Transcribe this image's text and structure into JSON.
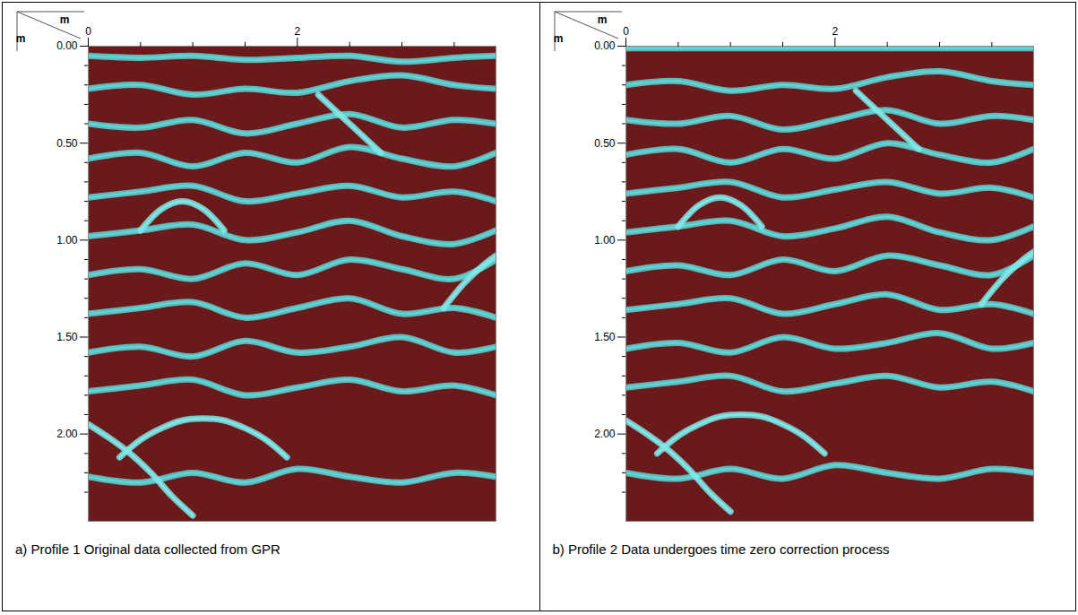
{
  "chart_data": [
    {
      "type": "line",
      "caption": "a)  Profile 1 Original data collected from GPR",
      "x_label": "m",
      "y_label": "m",
      "xlim": [
        0,
        3.9
      ],
      "xticks": [
        0,
        2
      ],
      "xminor": [
        0.5,
        1,
        1.5,
        2.5,
        3,
        3.5
      ],
      "ylim": [
        0,
        2.45
      ],
      "yticks": [
        {
          "value": 0,
          "label": "0.00"
        },
        {
          "value": 0.5,
          "label": "0.50"
        },
        {
          "value": 1,
          "label": "1.00"
        },
        {
          "value": 1.5,
          "label": "1.50"
        },
        {
          "value": 2,
          "label": "2.00"
        }
      ],
      "yminor": [
        0.1,
        0.2,
        0.3,
        0.4,
        0.6,
        0.7,
        0.8,
        0.9,
        1.1,
        1.2,
        1.3,
        1.4,
        1.6,
        1.7,
        1.8,
        1.9,
        2.1,
        2.2,
        2.3
      ],
      "series": [
        {
          "color": "#5ed6d6",
          "x": [
            0,
            0.5,
            1,
            1.5,
            2,
            2.5,
            3,
            3.5,
            3.9
          ],
          "values": [
            0.05,
            0.06,
            0.05,
            0.07,
            0.06,
            0.05,
            0.08,
            0.06,
            0.05
          ]
        },
        {
          "color": "#5ed6d6",
          "x": [
            0,
            0.5,
            1,
            1.5,
            2,
            2.5,
            3,
            3.5,
            3.9
          ],
          "values": [
            0.22,
            0.2,
            0.25,
            0.22,
            0.24,
            0.18,
            0.15,
            0.2,
            0.22
          ]
        },
        {
          "color": "#5ed6d6",
          "x": [
            0,
            0.5,
            1,
            1.5,
            2,
            2.5,
            3,
            3.5,
            3.9
          ],
          "values": [
            0.4,
            0.42,
            0.38,
            0.45,
            0.4,
            0.35,
            0.42,
            0.38,
            0.4
          ]
        },
        {
          "color": "#5ed6d6",
          "x": [
            0,
            0.5,
            1,
            1.5,
            2,
            2.5,
            3,
            3.5,
            3.9
          ],
          "values": [
            0.58,
            0.55,
            0.62,
            0.55,
            0.6,
            0.52,
            0.58,
            0.62,
            0.55
          ]
        },
        {
          "color": "#5ed6d6",
          "x": [
            0,
            0.5,
            1,
            1.5,
            2,
            2.5,
            3,
            3.5,
            3.9
          ],
          "values": [
            0.78,
            0.75,
            0.72,
            0.8,
            0.76,
            0.72,
            0.78,
            0.75,
            0.8
          ]
        },
        {
          "color": "#5ed6d6",
          "x": [
            0,
            0.5,
            1,
            1.5,
            2,
            2.5,
            3,
            3.5,
            3.9
          ],
          "values": [
            0.98,
            0.95,
            0.92,
            1.0,
            0.96,
            0.9,
            0.98,
            1.02,
            0.95
          ]
        },
        {
          "color": "#5ed6d6",
          "x": [
            0,
            0.5,
            1,
            1.5,
            2,
            2.5,
            3,
            3.5,
            3.9
          ],
          "values": [
            1.18,
            1.15,
            1.2,
            1.12,
            1.18,
            1.1,
            1.15,
            1.2,
            1.1
          ]
        },
        {
          "color": "#5ed6d6",
          "x": [
            0,
            0.5,
            1,
            1.5,
            2,
            2.5,
            3,
            3.5,
            3.9
          ],
          "values": [
            1.38,
            1.35,
            1.32,
            1.4,
            1.35,
            1.3,
            1.38,
            1.35,
            1.4
          ]
        },
        {
          "color": "#5ed6d6",
          "x": [
            0,
            0.5,
            1,
            1.5,
            2,
            2.5,
            3,
            3.5,
            3.9
          ],
          "values": [
            1.58,
            1.55,
            1.6,
            1.52,
            1.58,
            1.55,
            1.5,
            1.58,
            1.55
          ]
        },
        {
          "color": "#5ed6d6",
          "x": [
            0,
            0.5,
            1,
            1.5,
            2,
            2.5,
            3,
            3.5,
            3.9
          ],
          "values": [
            1.78,
            1.75,
            1.72,
            1.8,
            1.76,
            1.72,
            1.78,
            1.75,
            1.8
          ]
        },
        {
          "color": "#5ed6d6",
          "x": [
            0,
            0.5,
            1,
            1.5,
            2,
            2.5,
            3,
            3.5,
            3.9
          ],
          "values": [
            2.22,
            2.25,
            2.2,
            2.25,
            2.18,
            2.22,
            2.25,
            2.2,
            2.22
          ]
        },
        {
          "color": "#7fe8e8",
          "x": [
            0.3,
            0.5,
            0.7,
            0.9,
            1.1,
            1.3,
            1.5,
            1.7,
            1.9
          ],
          "values": [
            2.12,
            2.03,
            1.97,
            1.93,
            1.92,
            1.93,
            1.97,
            2.03,
            2.12
          ]
        },
        {
          "color": "#7fe8e8",
          "x": [
            0,
            0.2,
            0.4,
            0.6,
            0.8,
            1.0
          ],
          "values": [
            1.95,
            2.02,
            2.1,
            2.2,
            2.32,
            2.42
          ]
        },
        {
          "color": "#7fe8e8",
          "x": [
            0.5,
            0.7,
            0.9,
            1.1,
            1.3
          ],
          "values": [
            0.95,
            0.84,
            0.8,
            0.84,
            0.95
          ]
        },
        {
          "color": "#7fe8e8",
          "x": [
            3.4,
            3.6,
            3.8,
            3.9
          ],
          "values": [
            1.35,
            1.22,
            1.12,
            1.08
          ]
        },
        {
          "color": "#7fe8e8",
          "x": [
            2.2,
            2.5,
            2.8
          ],
          "values": [
            0.25,
            0.4,
            0.55
          ]
        }
      ]
    },
    {
      "type": "line",
      "caption": "b)  Profile 2 Data undergoes time zero correction process",
      "x_label": "m",
      "y_label": "m",
      "xlim": [
        0,
        3.9
      ],
      "xticks": [
        0,
        2
      ],
      "xminor": [
        0.5,
        1,
        1.5,
        2.5,
        3,
        3.5
      ],
      "ylim": [
        0,
        2.45
      ],
      "yticks": [
        {
          "value": 0,
          "label": "0.00"
        },
        {
          "value": 0.5,
          "label": "0.50"
        },
        {
          "value": 1,
          "label": "1.00"
        },
        {
          "value": 1.5,
          "label": "1.50"
        },
        {
          "value": 2,
          "label": "2.00"
        }
      ],
      "yminor": [
        0.1,
        0.2,
        0.3,
        0.4,
        0.6,
        0.7,
        0.8,
        0.9,
        1.1,
        1.2,
        1.3,
        1.4,
        1.6,
        1.7,
        1.8,
        1.9,
        2.1,
        2.2,
        2.3
      ],
      "series": [
        {
          "color": "#5ed6d6",
          "x": [
            0,
            0.5,
            1,
            1.5,
            2,
            2.5,
            3,
            3.5,
            3.9
          ],
          "values": [
            0.01,
            0.01,
            0.01,
            0.01,
            0.01,
            0.01,
            0.01,
            0.01,
            0.01
          ]
        },
        {
          "color": "#5ed6d6",
          "x": [
            0,
            0.5,
            1,
            1.5,
            2,
            2.5,
            3,
            3.5,
            3.9
          ],
          "values": [
            0.2,
            0.18,
            0.23,
            0.2,
            0.22,
            0.16,
            0.13,
            0.18,
            0.2
          ]
        },
        {
          "color": "#5ed6d6",
          "x": [
            0,
            0.5,
            1,
            1.5,
            2,
            2.5,
            3,
            3.5,
            3.9
          ],
          "values": [
            0.38,
            0.4,
            0.36,
            0.43,
            0.38,
            0.33,
            0.4,
            0.36,
            0.38
          ]
        },
        {
          "color": "#5ed6d6",
          "x": [
            0,
            0.5,
            1,
            1.5,
            2,
            2.5,
            3,
            3.5,
            3.9
          ],
          "values": [
            0.56,
            0.53,
            0.6,
            0.53,
            0.58,
            0.5,
            0.56,
            0.6,
            0.53
          ]
        },
        {
          "color": "#5ed6d6",
          "x": [
            0,
            0.5,
            1,
            1.5,
            2,
            2.5,
            3,
            3.5,
            3.9
          ],
          "values": [
            0.76,
            0.73,
            0.7,
            0.78,
            0.74,
            0.7,
            0.76,
            0.73,
            0.78
          ]
        },
        {
          "color": "#5ed6d6",
          "x": [
            0,
            0.5,
            1,
            1.5,
            2,
            2.5,
            3,
            3.5,
            3.9
          ],
          "values": [
            0.96,
            0.93,
            0.9,
            0.98,
            0.94,
            0.88,
            0.96,
            1.0,
            0.93
          ]
        },
        {
          "color": "#5ed6d6",
          "x": [
            0,
            0.5,
            1,
            1.5,
            2,
            2.5,
            3,
            3.5,
            3.9
          ],
          "values": [
            1.16,
            1.13,
            1.18,
            1.1,
            1.16,
            1.08,
            1.13,
            1.18,
            1.08
          ]
        },
        {
          "color": "#5ed6d6",
          "x": [
            0,
            0.5,
            1,
            1.5,
            2,
            2.5,
            3,
            3.5,
            3.9
          ],
          "values": [
            1.36,
            1.33,
            1.3,
            1.38,
            1.33,
            1.28,
            1.36,
            1.33,
            1.38
          ]
        },
        {
          "color": "#5ed6d6",
          "x": [
            0,
            0.5,
            1,
            1.5,
            2,
            2.5,
            3,
            3.5,
            3.9
          ],
          "values": [
            1.56,
            1.53,
            1.58,
            1.5,
            1.56,
            1.53,
            1.48,
            1.56,
            1.53
          ]
        },
        {
          "color": "#5ed6d6",
          "x": [
            0,
            0.5,
            1,
            1.5,
            2,
            2.5,
            3,
            3.5,
            3.9
          ],
          "values": [
            1.76,
            1.73,
            1.7,
            1.78,
            1.74,
            1.7,
            1.76,
            1.73,
            1.78
          ]
        },
        {
          "color": "#5ed6d6",
          "x": [
            0,
            0.5,
            1,
            1.5,
            2,
            2.5,
            3,
            3.5,
            3.9
          ],
          "values": [
            2.2,
            2.23,
            2.18,
            2.23,
            2.16,
            2.2,
            2.23,
            2.18,
            2.2
          ]
        },
        {
          "color": "#7fe8e8",
          "x": [
            0.3,
            0.5,
            0.7,
            0.9,
            1.1,
            1.3,
            1.5,
            1.7,
            1.9
          ],
          "values": [
            2.1,
            2.01,
            1.95,
            1.91,
            1.9,
            1.91,
            1.95,
            2.01,
            2.1
          ]
        },
        {
          "color": "#7fe8e8",
          "x": [
            0,
            0.2,
            0.4,
            0.6,
            0.8,
            1.0
          ],
          "values": [
            1.93,
            2.0,
            2.08,
            2.18,
            2.3,
            2.4
          ]
        },
        {
          "color": "#7fe8e8",
          "x": [
            0.5,
            0.7,
            0.9,
            1.1,
            1.3
          ],
          "values": [
            0.93,
            0.82,
            0.78,
            0.82,
            0.93
          ]
        },
        {
          "color": "#7fe8e8",
          "x": [
            3.4,
            3.6,
            3.8,
            3.9
          ],
          "values": [
            1.33,
            1.2,
            1.1,
            1.06
          ]
        },
        {
          "color": "#7fe8e8",
          "x": [
            2.2,
            2.5,
            2.8
          ],
          "values": [
            0.23,
            0.38,
            0.53
          ]
        }
      ]
    }
  ]
}
